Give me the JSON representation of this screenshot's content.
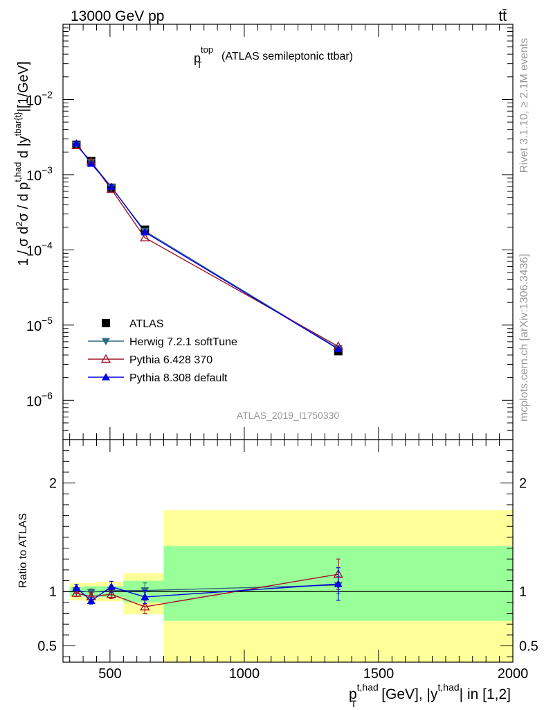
{
  "header": {
    "energy_label": "13000 GeV pp",
    "process_label": "tt̄"
  },
  "side": {
    "rivet_label": "Rivet 3.1.10, ≥ 2.1M events",
    "mcplots_label": "mcplots.cern.ch [arXiv:1306.3436]"
  },
  "chart_data": [
    {
      "type": "line",
      "panel": "main",
      "title_main": "p",
      "title_sup": "top",
      "title_sub": "T",
      "title_rest": "(ATLAS semileptonic ttbar)",
      "watermark": "ATLAS_2019_I1750330",
      "ylabel": {
        "a": "1 / σ d",
        "a_sup": "2",
        "b": "σ / d p",
        "b_sup": "t,had",
        "b_sub": "T",
        "c": " d |y",
        "c_sup": "tbar{t}",
        "d": "|[1/GeV]"
      },
      "yscale": "log",
      "xlim": [
        325,
        2000
      ],
      "ylim": [
        3e-07,
        0.1
      ],
      "y_ticks": [
        {
          "value": 1e-06,
          "mantissa": "10",
          "exp": "−6"
        },
        {
          "value": 1e-05,
          "mantissa": "10",
          "exp": "−5"
        },
        {
          "value": 0.0001,
          "mantissa": "10",
          "exp": "−4"
        },
        {
          "value": 0.001,
          "mantissa": "10",
          "exp": "−3"
        },
        {
          "value": 0.01,
          "mantissa": "10",
          "exp": "−2"
        }
      ],
      "legend_position": "bottom-left",
      "series": [
        {
          "name": "ATLAS",
          "color": "#000000",
          "marker": "square",
          "x": [
            375,
            430,
            505,
            630,
            1350
          ],
          "y": [
            0.0025,
            0.00152,
            0.00067,
            0.000185,
            4.5e-06
          ]
        },
        {
          "name": "Herwig 7.2.1 softTune",
          "color": "#2d6b7a",
          "marker": "triangle-down",
          "x": [
            375,
            430,
            505,
            630,
            1350
          ],
          "y": [
            0.0025,
            0.00148,
            0.00068,
            0.000178,
            4.9e-06
          ]
        },
        {
          "name": "Pythia 6.428 370",
          "color": "#a0132a",
          "marker": "triangle-up-open",
          "x": [
            375,
            430,
            505,
            630,
            1350
          ],
          "y": [
            0.00245,
            0.00148,
            0.00064,
            0.000145,
            5.2e-06
          ]
        },
        {
          "name": "Pythia 8.308 default",
          "color": "#0000e6",
          "marker": "triangle-up",
          "x": [
            375,
            430,
            505,
            630,
            1350
          ],
          "y": [
            0.0026,
            0.0014,
            0.00069,
            0.000172,
            4.8e-06
          ]
        }
      ]
    },
    {
      "type": "line",
      "panel": "ratio",
      "ylabel": "Ratio to ATLAS",
      "xlabel": {
        "a": "p",
        "a_sup": "t,had",
        "a_sub": "T",
        "b": " [GeV], |y",
        "b_sup": "t,had",
        "c": "| in [1,2]"
      },
      "xlim": [
        325,
        2000
      ],
      "ylim": [
        0.35,
        2.4
      ],
      "x_ticks": [
        500,
        1000,
        1500,
        2000
      ],
      "y_ticks": [
        0.5,
        1,
        2
      ],
      "y_tick_labels": [
        "0.5",
        "1",
        "2"
      ],
      "bands": [
        {
          "x0": 350,
          "x1": 400,
          "total": [
            0.92,
            1.08
          ],
          "stat": [
            0.96,
            1.04
          ]
        },
        {
          "x0": 400,
          "x1": 450,
          "total": [
            0.91,
            1.08
          ],
          "stat": [
            0.95,
            1.05
          ]
        },
        {
          "x0": 450,
          "x1": 550,
          "total": [
            0.91,
            1.09
          ],
          "stat": [
            0.95,
            1.05
          ]
        },
        {
          "x0": 550,
          "x1": 700,
          "total": [
            0.79,
            1.17
          ],
          "stat": [
            0.9,
            1.1
          ]
        },
        {
          "x0": 700,
          "x1": 2000,
          "total": [
            0.35,
            1.75
          ],
          "stat": [
            0.73,
            1.42
          ]
        }
      ],
      "series": [
        {
          "name": "Herwig 7.2.1 softTune",
          "color": "#2d6b7a",
          "marker": "triangle-down",
          "x": [
            375,
            430,
            505,
            630,
            1350
          ],
          "y": [
            1.01,
            0.995,
            1.01,
            1.01,
            1.06
          ],
          "err": [
            0.03,
            0.03,
            0.04,
            0.07,
            0.08
          ]
        },
        {
          "name": "Pythia 6.428 370",
          "color": "#a0132a",
          "marker": "triangle-up-open",
          "x": [
            375,
            430,
            505,
            630,
            1350
          ],
          "y": [
            0.985,
            0.955,
            0.975,
            0.86,
            1.16
          ],
          "err": [
            0.03,
            0.04,
            0.04,
            0.06,
            0.14
          ]
        },
        {
          "name": "Pythia 8.308 default",
          "color": "#0000e6",
          "marker": "triangle-up",
          "x": [
            375,
            430,
            505,
            630,
            1350
          ],
          "y": [
            1.035,
            0.915,
            1.045,
            0.95,
            1.07
          ],
          "err": [
            0.03,
            0.03,
            0.05,
            0.06,
            0.15
          ]
        }
      ]
    }
  ]
}
